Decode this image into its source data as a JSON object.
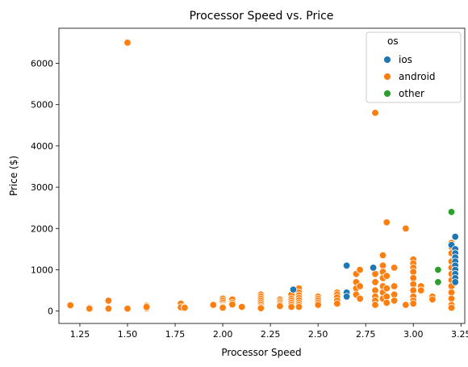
{
  "chart_data": {
    "type": "scatter",
    "title": "Processor Speed vs. Price",
    "xlabel": "Processor Speed",
    "ylabel": "Price ($)",
    "xlim": [
      1.14,
      3.27
    ],
    "ylim": [
      -300,
      6850
    ],
    "xticks": [
      1.25,
      1.5,
      1.75,
      2.0,
      2.25,
      2.5,
      2.75,
      3.0,
      3.25
    ],
    "xtick_labels": [
      "1.25",
      "1.50",
      "1.75",
      "2.00",
      "2.25",
      "2.50",
      "2.75",
      "3.00",
      "3.25"
    ],
    "yticks": [
      0,
      1000,
      2000,
      3000,
      4000,
      5000,
      6000
    ],
    "ytick_labels": [
      "0",
      "1000",
      "2000",
      "3000",
      "4000",
      "5000",
      "6000"
    ],
    "grid": false,
    "legend": {
      "title": "os",
      "position": "top-right",
      "entries": [
        {
          "name": "ios",
          "color": "#1f77b4"
        },
        {
          "name": "android",
          "color": "#ff7f0e"
        },
        {
          "name": "other",
          "color": "#2ca02c"
        }
      ]
    },
    "series": [
      {
        "name": "android",
        "color": "#ff7f0e",
        "points": [
          [
            1.2,
            140
          ],
          [
            1.3,
            80
          ],
          [
            1.3,
            60
          ],
          [
            1.4,
            250
          ],
          [
            1.4,
            60
          ],
          [
            1.5,
            6500
          ],
          [
            1.5,
            60
          ],
          [
            1.6,
            130
          ],
          [
            1.6,
            70
          ],
          [
            1.6,
            100
          ],
          [
            1.78,
            180
          ],
          [
            1.78,
            90
          ],
          [
            1.8,
            100
          ],
          [
            1.8,
            80
          ],
          [
            1.95,
            150
          ],
          [
            2.0,
            300
          ],
          [
            2.0,
            250
          ],
          [
            2.0,
            200
          ],
          [
            2.0,
            150
          ],
          [
            2.0,
            120
          ],
          [
            2.0,
            100
          ],
          [
            2.0,
            80
          ],
          [
            2.05,
            280
          ],
          [
            2.05,
            200
          ],
          [
            2.05,
            160
          ],
          [
            2.1,
            100
          ],
          [
            2.2,
            400
          ],
          [
            2.2,
            350
          ],
          [
            2.2,
            300
          ],
          [
            2.2,
            250
          ],
          [
            2.2,
            200
          ],
          [
            2.2,
            150
          ],
          [
            2.2,
            100
          ],
          [
            2.2,
            70
          ],
          [
            2.3,
            280
          ],
          [
            2.3,
            240
          ],
          [
            2.3,
            200
          ],
          [
            2.3,
            160
          ],
          [
            2.3,
            120
          ],
          [
            2.36,
            400
          ],
          [
            2.36,
            300
          ],
          [
            2.36,
            250
          ],
          [
            2.36,
            200
          ],
          [
            2.36,
            150
          ],
          [
            2.36,
            100
          ],
          [
            2.4,
            550
          ],
          [
            2.4,
            450
          ],
          [
            2.4,
            380
          ],
          [
            2.4,
            320
          ],
          [
            2.4,
            260
          ],
          [
            2.4,
            200
          ],
          [
            2.4,
            150
          ],
          [
            2.4,
            100
          ],
          [
            2.5,
            350
          ],
          [
            2.5,
            300
          ],
          [
            2.5,
            250
          ],
          [
            2.5,
            200
          ],
          [
            2.5,
            150
          ],
          [
            2.6,
            450
          ],
          [
            2.6,
            400
          ],
          [
            2.6,
            330
          ],
          [
            2.6,
            250
          ],
          [
            2.6,
            180
          ],
          [
            2.7,
            900
          ],
          [
            2.7,
            700
          ],
          [
            2.7,
            550
          ],
          [
            2.7,
            400
          ],
          [
            2.72,
            1000
          ],
          [
            2.72,
            600
          ],
          [
            2.72,
            300
          ],
          [
            2.8,
            4800
          ],
          [
            2.8,
            900
          ],
          [
            2.8,
            700
          ],
          [
            2.8,
            500
          ],
          [
            2.8,
            350
          ],
          [
            2.8,
            250
          ],
          [
            2.8,
            150
          ],
          [
            2.84,
            1350
          ],
          [
            2.84,
            1100
          ],
          [
            2.84,
            950
          ],
          [
            2.84,
            800
          ],
          [
            2.84,
            600
          ],
          [
            2.84,
            450
          ],
          [
            2.84,
            300
          ],
          [
            2.86,
            2150
          ],
          [
            2.86,
            850
          ],
          [
            2.86,
            550
          ],
          [
            2.86,
            350
          ],
          [
            2.86,
            200
          ],
          [
            2.9,
            1050
          ],
          [
            2.9,
            600
          ],
          [
            2.9,
            400
          ],
          [
            2.9,
            250
          ],
          [
            2.96,
            2000
          ],
          [
            2.96,
            150
          ],
          [
            3.0,
            1250
          ],
          [
            3.0,
            1150
          ],
          [
            3.0,
            1050
          ],
          [
            3.0,
            950
          ],
          [
            3.0,
            800
          ],
          [
            3.0,
            650
          ],
          [
            3.0,
            500
          ],
          [
            3.0,
            350
          ],
          [
            3.0,
            250
          ],
          [
            3.0,
            180
          ],
          [
            3.04,
            600
          ],
          [
            3.04,
            500
          ],
          [
            3.1,
            350
          ],
          [
            3.1,
            280
          ],
          [
            3.2,
            1650
          ],
          [
            3.2,
            1550
          ],
          [
            3.2,
            1400
          ],
          [
            3.2,
            1200
          ],
          [
            3.2,
            1050
          ],
          [
            3.2,
            900
          ],
          [
            3.2,
            750
          ],
          [
            3.2,
            600
          ],
          [
            3.2,
            450
          ],
          [
            3.2,
            300
          ],
          [
            3.2,
            150
          ],
          [
            3.2,
            80
          ]
        ]
      },
      {
        "name": "ios",
        "color": "#1f77b4",
        "points": [
          [
            2.37,
            520
          ],
          [
            2.65,
            1100
          ],
          [
            2.65,
            450
          ],
          [
            2.65,
            350
          ],
          [
            2.79,
            1050
          ],
          [
            3.2,
            1600
          ],
          [
            3.22,
            1800
          ],
          [
            3.22,
            1500
          ],
          [
            3.22,
            1400
          ],
          [
            3.22,
            1300
          ],
          [
            3.22,
            1200
          ],
          [
            3.22,
            1100
          ],
          [
            3.22,
            1000
          ],
          [
            3.22,
            900
          ],
          [
            3.22,
            800
          ],
          [
            3.22,
            700
          ]
        ]
      },
      {
        "name": "other",
        "color": "#2ca02c",
        "points": [
          [
            3.13,
            1000
          ],
          [
            3.13,
            700
          ],
          [
            3.2,
            2400
          ]
        ]
      }
    ]
  }
}
